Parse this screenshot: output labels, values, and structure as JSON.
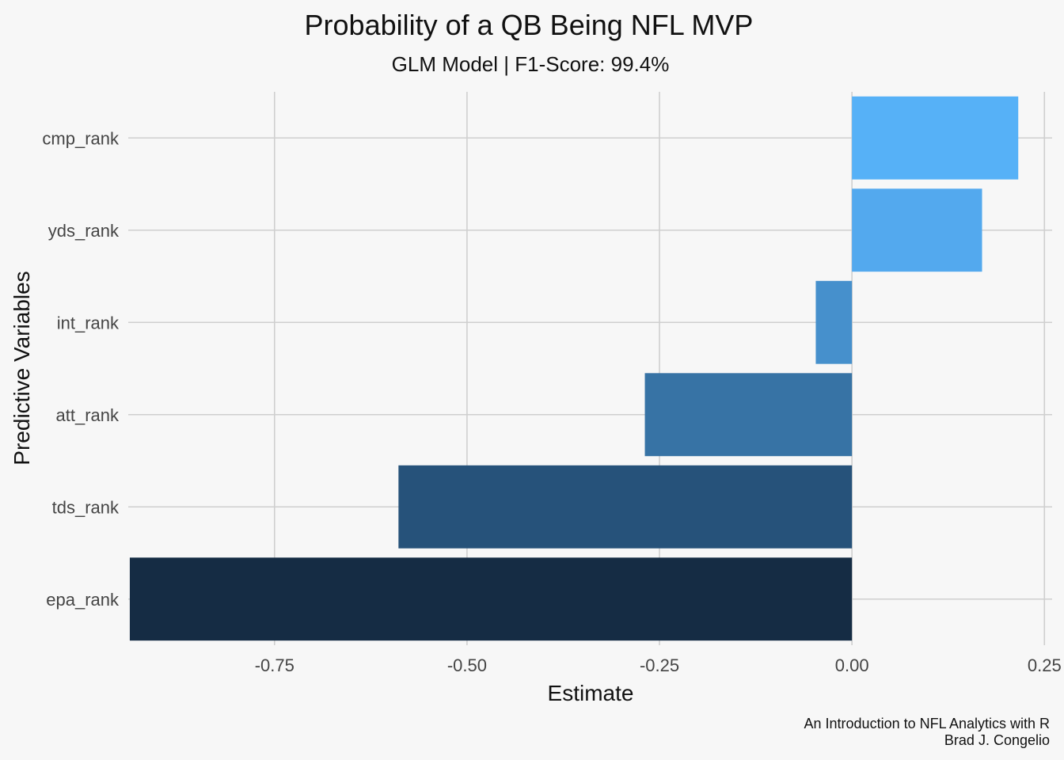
{
  "chart_data": {
    "type": "bar",
    "orientation": "horizontal",
    "title": "Probability of a QB Being NFL MVP",
    "subtitle": "GLM Model | F1-Score: 99.4%",
    "xlabel": "Estimate",
    "ylabel": "Predictive Variables",
    "categories": [
      "cmp_rank",
      "yds_rank",
      "int_rank",
      "att_rank",
      "tds_rank",
      "epa_rank"
    ],
    "values": [
      0.216,
      0.169,
      -0.047,
      -0.269,
      -0.589,
      -0.938
    ],
    "colors": [
      "#56b1f7",
      "#53a9ee",
      "#4690cc",
      "#3773a5",
      "#26527a",
      "#152c44"
    ],
    "xlim": [
      -0.94,
      0.26
    ],
    "xticks": [
      -0.75,
      -0.5,
      -0.25,
      0.0,
      0.25
    ],
    "xtick_labels": [
      "-0.75",
      "-0.50",
      "-0.25",
      "0.00",
      "0.25"
    ],
    "grid": true,
    "legend": "none",
    "caption_lines": [
      "An Introduction to NFL Analytics with R",
      "Brad J. Congelio"
    ]
  }
}
